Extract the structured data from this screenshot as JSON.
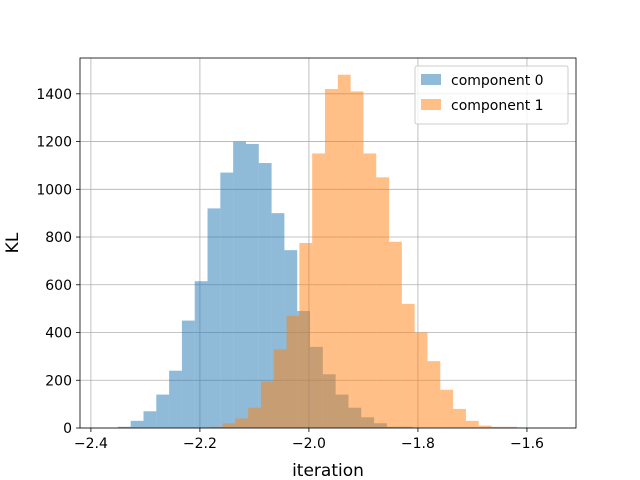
{
  "chart_data": {
    "type": "bar",
    "subtype": "histogram",
    "title": "",
    "xlabel": "iteration",
    "ylabel": "KL",
    "xlim": [
      -2.42,
      -1.51
    ],
    "ylim": [
      0,
      1550
    ],
    "xticks": [
      -2.4,
      -2.2,
      -2.0,
      -1.8,
      -1.6
    ],
    "xtick_labels": [
      "−2.4",
      "−2.2",
      "−2.0",
      "−1.8",
      "−1.6"
    ],
    "yticks": [
      0,
      200,
      400,
      600,
      800,
      1000,
      1200,
      1400
    ],
    "ytick_labels": [
      "0",
      "200",
      "400",
      "600",
      "800",
      "1000",
      "1200",
      "1400"
    ],
    "grid": true,
    "legend_position": "top-right",
    "alpha": 0.5,
    "series": [
      {
        "name": "component 0",
        "color": "#1f77b4",
        "bin_start": -2.3505,
        "bin_width": 0.0235,
        "counts": [
          5,
          30,
          70,
          140,
          240,
          450,
          615,
          920,
          1070,
          1200,
          1190,
          1110,
          900,
          745,
          490,
          340,
          225,
          140,
          85,
          45,
          20,
          5,
          5
        ]
      },
      {
        "name": "component 1",
        "color": "#ff7f0e",
        "bin_start": -2.182,
        "bin_width": 0.0235,
        "counts": [
          5,
          20,
          40,
          85,
          195,
          330,
          470,
          775,
          1150,
          1420,
          1480,
          1410,
          1150,
          1050,
          780,
          520,
          400,
          280,
          160,
          80,
          30,
          10,
          5,
          5
        ]
      }
    ]
  }
}
